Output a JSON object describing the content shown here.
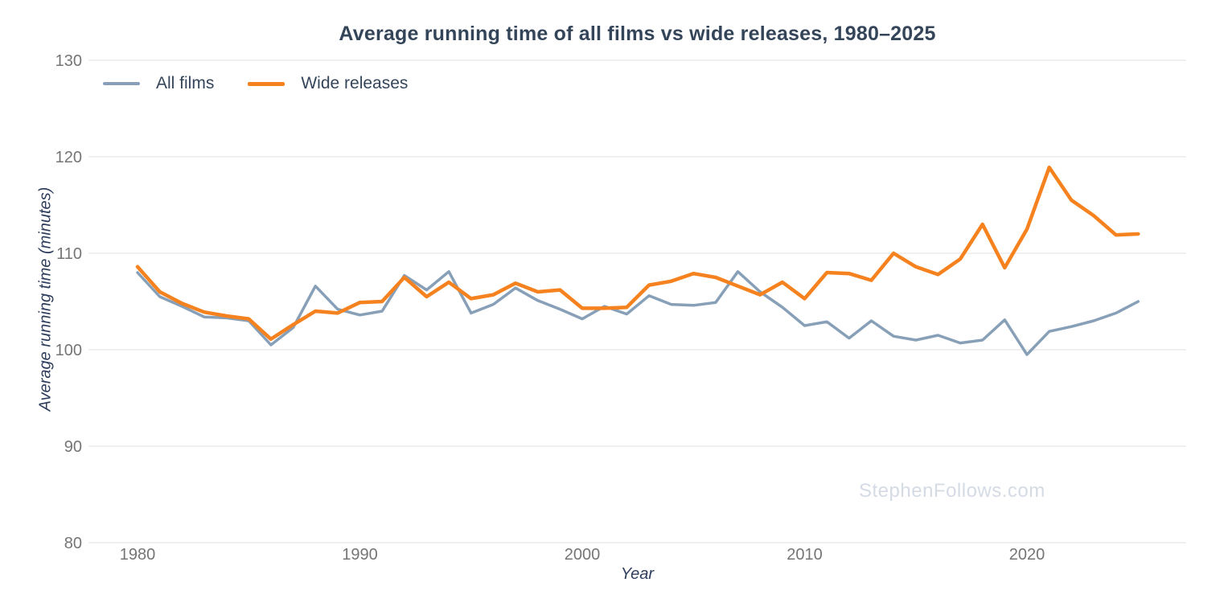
{
  "title": "Average running time of all films vs wide releases, 1980–2025",
  "watermark": "StephenFollows.com",
  "axes": {
    "x_label": "Year",
    "y_label": "Average running time (minutes)"
  },
  "legend": {
    "items": [
      {
        "label": "All films",
        "color": "#87a0b8"
      },
      {
        "label": "Wide releases",
        "color": "#f5821e"
      }
    ]
  },
  "colors": {
    "background": "#ffffff",
    "grid": "#ebebeb",
    "tick_label": "#757575",
    "heading_text": "#34455a",
    "watermark": "#d5dbe4",
    "all_films_line": "#87a0b8",
    "wide_releases_line": "#f5821e"
  },
  "chart_data": {
    "type": "line",
    "title": "Average running time of all films vs wide releases, 1980–2025",
    "xlabel": "Year",
    "ylabel": "Average running time (minutes)",
    "ylim": [
      80,
      130
    ],
    "xlim": [
      1980,
      2025
    ],
    "y_ticks": [
      80,
      90,
      100,
      110,
      120,
      130
    ],
    "x_ticks": [
      1980,
      1990,
      2000,
      2010,
      2020
    ],
    "grid": "horizontal-only",
    "legend_position": "top-left",
    "x": [
      1980,
      1981,
      1982,
      1983,
      1984,
      1985,
      1986,
      1987,
      1988,
      1989,
      1990,
      1991,
      1992,
      1993,
      1994,
      1995,
      1996,
      1997,
      1998,
      1999,
      2000,
      2001,
      2002,
      2003,
      2004,
      2005,
      2006,
      2007,
      2008,
      2009,
      2010,
      2011,
      2012,
      2013,
      2014,
      2015,
      2016,
      2017,
      2018,
      2019,
      2020,
      2021,
      2022,
      2023,
      2024,
      2025
    ],
    "series": [
      {
        "name": "All films",
        "color": "#87a0b8",
        "stroke_width": 3.5,
        "values": [
          108.0,
          105.5,
          104.5,
          103.4,
          103.3,
          103.0,
          100.5,
          102.3,
          106.6,
          104.2,
          103.6,
          104.0,
          107.7,
          106.2,
          108.1,
          103.8,
          104.7,
          106.4,
          105.1,
          104.2,
          103.2,
          104.5,
          103.7,
          105.6,
          104.7,
          104.6,
          104.9,
          108.1,
          106.0,
          104.4,
          102.5,
          102.9,
          101.2,
          103.0,
          101.4,
          101.0,
          101.5,
          100.7,
          101.0,
          103.1,
          99.5,
          101.9,
          102.4,
          103.0,
          103.8,
          105.0
        ]
      },
      {
        "name": "Wide releases",
        "color": "#f5821e",
        "stroke_width": 4.5,
        "values": [
          108.6,
          106.0,
          104.8,
          103.9,
          103.5,
          103.2,
          101.1,
          102.6,
          104.0,
          103.8,
          104.9,
          105.0,
          107.5,
          105.5,
          107.0,
          105.3,
          105.7,
          106.9,
          106.0,
          106.2,
          104.3,
          104.3,
          104.4,
          106.7,
          107.1,
          107.9,
          107.5,
          106.6,
          105.7,
          107.0,
          105.3,
          108.0,
          107.9,
          107.2,
          110.0,
          108.6,
          107.8,
          109.4,
          113.0,
          108.5,
          112.5,
          118.9,
          115.5,
          113.9,
          111.9,
          112.0
        ]
      }
    ]
  },
  "plot_geometry_note": "y ticks at 80-130 every 10; x ticks every decade 1980-2020"
}
